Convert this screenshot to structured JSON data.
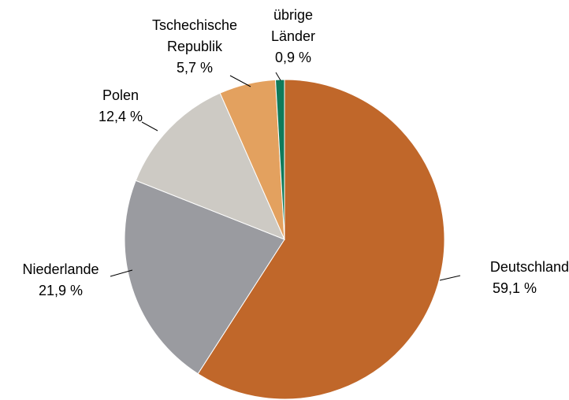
{
  "chart_data": {
    "type": "pie",
    "categories": [
      "Deutschland",
      "Niederlande",
      "Polen",
      "Tschechische Republik",
      "übrige Länder"
    ],
    "values": [
      59.1,
      21.9,
      12.4,
      5.7,
      0.9
    ],
    "value_labels": [
      "59,1 %",
      "21,9 %",
      "12,4 %",
      "5,7 %",
      "0,9 %"
    ],
    "colors": [
      "#c0672a",
      "#9a9ba0",
      "#cdcac4",
      "#e3a15f",
      "#0f7a5a"
    ]
  }
}
